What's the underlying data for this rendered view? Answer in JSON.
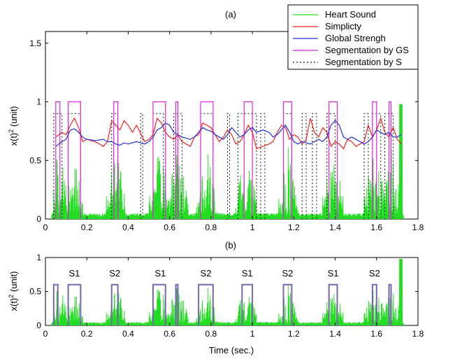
{
  "colors": {
    "heart": "#22dd22",
    "simplicity": "#ee2222",
    "global": "#2233dd",
    "seg_gs": "#dd22dd",
    "seg_s": "#111111",
    "seg_b": "#7766aa"
  },
  "chart_data": [
    {
      "type": "line",
      "title": "(a)",
      "xlabel": "",
      "ylabel": "x(t)^2 (unit)",
      "ylabel_main": "x(t)",
      "ylabel_sup": "2",
      "ylabel_rest": " (unit)",
      "xlim": [
        0,
        1.8
      ],
      "ylim": [
        0,
        1.6
      ],
      "xticks": [
        "0",
        "0.2",
        "0.4",
        "0.6",
        "0.8",
        "1",
        "1.2",
        "1.4",
        "1.6",
        "1.8"
      ],
      "yticks": [
        "0",
        "0.5",
        "1",
        "1.5"
      ],
      "legend_position": "top-right",
      "legend": [
        "Heart Sound",
        "Simplicty",
        "Global Strengh",
        "Segmentation by GS",
        "Segmentation by S"
      ],
      "series": [
        {
          "name": "Simplicty",
          "type": "line",
          "x": [
            0.05,
            0.08,
            0.1,
            0.12,
            0.14,
            0.16,
            0.18,
            0.2,
            0.24,
            0.28,
            0.3,
            0.32,
            0.34,
            0.36,
            0.38,
            0.4,
            0.42,
            0.44,
            0.48,
            0.5,
            0.52,
            0.54,
            0.56,
            0.58,
            0.6,
            0.62,
            0.64,
            0.66,
            0.7,
            0.72,
            0.74,
            0.76,
            0.78,
            0.8,
            0.82,
            0.84,
            0.86,
            0.88,
            0.9,
            0.92,
            0.94,
            0.96,
            0.98,
            1.0,
            1.02,
            1.05,
            1.08,
            1.1,
            1.12,
            1.14,
            1.16,
            1.18,
            1.2,
            1.22,
            1.24,
            1.26,
            1.28,
            1.3,
            1.32,
            1.34,
            1.36,
            1.38,
            1.4,
            1.42,
            1.44,
            1.46,
            1.48,
            1.5,
            1.52,
            1.54,
            1.56,
            1.58,
            1.6,
            1.62,
            1.64,
            1.66,
            1.68,
            1.7,
            1.72
          ],
          "y": [
            0.7,
            0.74,
            0.72,
            0.8,
            0.86,
            0.78,
            0.66,
            0.68,
            0.66,
            0.62,
            0.66,
            0.84,
            0.8,
            0.76,
            0.84,
            0.8,
            0.74,
            0.8,
            0.66,
            0.68,
            0.72,
            0.86,
            0.82,
            0.74,
            0.7,
            0.68,
            0.72,
            0.66,
            0.62,
            0.7,
            0.72,
            0.82,
            0.8,
            0.78,
            0.72,
            0.66,
            0.7,
            0.76,
            0.72,
            0.64,
            0.66,
            0.72,
            0.8,
            0.74,
            0.6,
            0.62,
            0.64,
            0.66,
            0.74,
            0.8,
            0.78,
            0.68,
            0.72,
            0.7,
            0.64,
            0.68,
            0.86,
            0.74,
            0.7,
            0.78,
            0.74,
            0.62,
            0.66,
            0.64,
            0.6,
            0.68,
            0.66,
            0.62,
            0.64,
            0.66,
            0.8,
            0.7,
            0.76,
            0.86,
            0.74,
            0.7,
            0.78,
            0.68,
            0.64
          ]
        },
        {
          "name": "Global Strengh",
          "type": "line",
          "x": [
            0.05,
            0.08,
            0.1,
            0.12,
            0.14,
            0.16,
            0.18,
            0.2,
            0.24,
            0.28,
            0.3,
            0.32,
            0.34,
            0.36,
            0.38,
            0.4,
            0.42,
            0.44,
            0.48,
            0.5,
            0.52,
            0.54,
            0.56,
            0.58,
            0.6,
            0.62,
            0.64,
            0.66,
            0.7,
            0.72,
            0.74,
            0.76,
            0.78,
            0.8,
            0.82,
            0.84,
            0.86,
            0.88,
            0.9,
            0.92,
            0.94,
            0.96,
            0.98,
            1.0,
            1.02,
            1.05,
            1.08,
            1.1,
            1.12,
            1.14,
            1.16,
            1.18,
            1.2,
            1.22,
            1.24,
            1.26,
            1.28,
            1.3,
            1.32,
            1.34,
            1.36,
            1.38,
            1.4,
            1.42,
            1.44,
            1.46,
            1.48,
            1.5,
            1.52,
            1.54,
            1.56,
            1.58,
            1.6,
            1.62,
            1.64,
            1.66,
            1.68,
            1.7,
            1.72
          ],
          "y": [
            0.62,
            0.66,
            0.68,
            0.76,
            0.77,
            0.74,
            0.7,
            0.68,
            0.67,
            0.68,
            0.66,
            0.66,
            0.64,
            0.63,
            0.65,
            0.64,
            0.65,
            0.66,
            0.64,
            0.66,
            0.7,
            0.76,
            0.78,
            0.82,
            0.8,
            0.74,
            0.72,
            0.7,
            0.68,
            0.7,
            0.74,
            0.78,
            0.76,
            0.75,
            0.72,
            0.7,
            0.68,
            0.72,
            0.78,
            0.74,
            0.7,
            0.72,
            0.76,
            0.78,
            0.74,
            0.76,
            0.74,
            0.7,
            0.72,
            0.76,
            0.8,
            0.74,
            0.66,
            0.64,
            0.66,
            0.65,
            0.64,
            0.66,
            0.68,
            0.66,
            0.7,
            0.8,
            0.84,
            0.8,
            0.7,
            0.68,
            0.7,
            0.68,
            0.66,
            0.64,
            0.66,
            0.7,
            0.76,
            0.74,
            0.72,
            0.74,
            0.7,
            0.7,
            0.72
          ]
        },
        {
          "name": "Segmentation by GS",
          "type": "windows",
          "level": 1.0,
          "windows": [
            [
              0.05,
              0.07
            ],
            [
              0.11,
              0.17
            ],
            [
              0.33,
              0.35
            ],
            [
              0.52,
              0.58
            ],
            [
              0.63,
              0.64
            ],
            [
              0.75,
              0.81
            ],
            [
              0.96,
              1.0
            ],
            [
              1.15,
              1.19
            ],
            [
              1.37,
              1.41
            ],
            [
              1.58,
              1.6
            ],
            [
              1.66,
              1.67
            ]
          ]
        },
        {
          "name": "Segmentation by S",
          "type": "windows",
          "level": 0.9,
          "windows": [
            [
              0.04,
              0.08
            ],
            [
              0.11,
              0.17
            ],
            [
              0.32,
              0.35
            ],
            [
              0.46,
              0.47
            ],
            [
              0.52,
              0.57
            ],
            [
              0.62,
              0.66
            ],
            [
              0.75,
              0.81
            ],
            [
              0.88,
              0.89
            ],
            [
              0.93,
              1.02
            ],
            [
              1.04,
              1.06
            ],
            [
              1.15,
              1.19
            ],
            [
              1.24,
              1.26
            ],
            [
              1.29,
              1.31
            ],
            [
              1.36,
              1.4
            ],
            [
              1.54,
              1.56
            ],
            [
              1.58,
              1.62
            ],
            [
              1.64,
              1.68
            ]
          ]
        }
      ]
    },
    {
      "type": "line",
      "title": "(b)",
      "xlabel": "Time (sec.)",
      "ylabel": "x(t)^2 (unit)",
      "ylabel_main": "x(t)",
      "ylabel_sup": "2",
      "ylabel_rest": " (unit)",
      "xlim": [
        0,
        1.8
      ],
      "ylim": [
        0,
        1
      ],
      "xticks": [
        "0",
        "0.2",
        "0.4",
        "0.6",
        "0.8",
        "1",
        "1.2",
        "1.4",
        "1.6",
        "1.8"
      ],
      "yticks": [
        "0",
        "0.5",
        "1"
      ],
      "segments": {
        "level": 0.6,
        "windows": [
          [
            0.04,
            0.06
          ],
          [
            0.11,
            0.17
          ],
          [
            0.32,
            0.35
          ],
          [
            0.52,
            0.58
          ],
          [
            0.63,
            0.64
          ],
          [
            0.74,
            0.81
          ],
          [
            0.95,
            1.0
          ],
          [
            1.15,
            1.19
          ],
          [
            1.37,
            1.41
          ],
          [
            1.58,
            1.6
          ],
          [
            1.66,
            1.67
          ]
        ]
      },
      "annotations": [
        {
          "text": "S1",
          "x": 0.14,
          "y": 0.7
        },
        {
          "text": "S2",
          "x": 0.335,
          "y": 0.7
        },
        {
          "text": "S1",
          "x": 0.555,
          "y": 0.7
        },
        {
          "text": "S2",
          "x": 0.775,
          "y": 0.7
        },
        {
          "text": "S1",
          "x": 0.975,
          "y": 0.7
        },
        {
          "text": "S2",
          "x": 1.17,
          "y": 0.7
        },
        {
          "text": "S1",
          "x": 1.39,
          "y": 0.7
        },
        {
          "text": "S2",
          "x": 1.59,
          "y": 0.7
        }
      ]
    }
  ]
}
